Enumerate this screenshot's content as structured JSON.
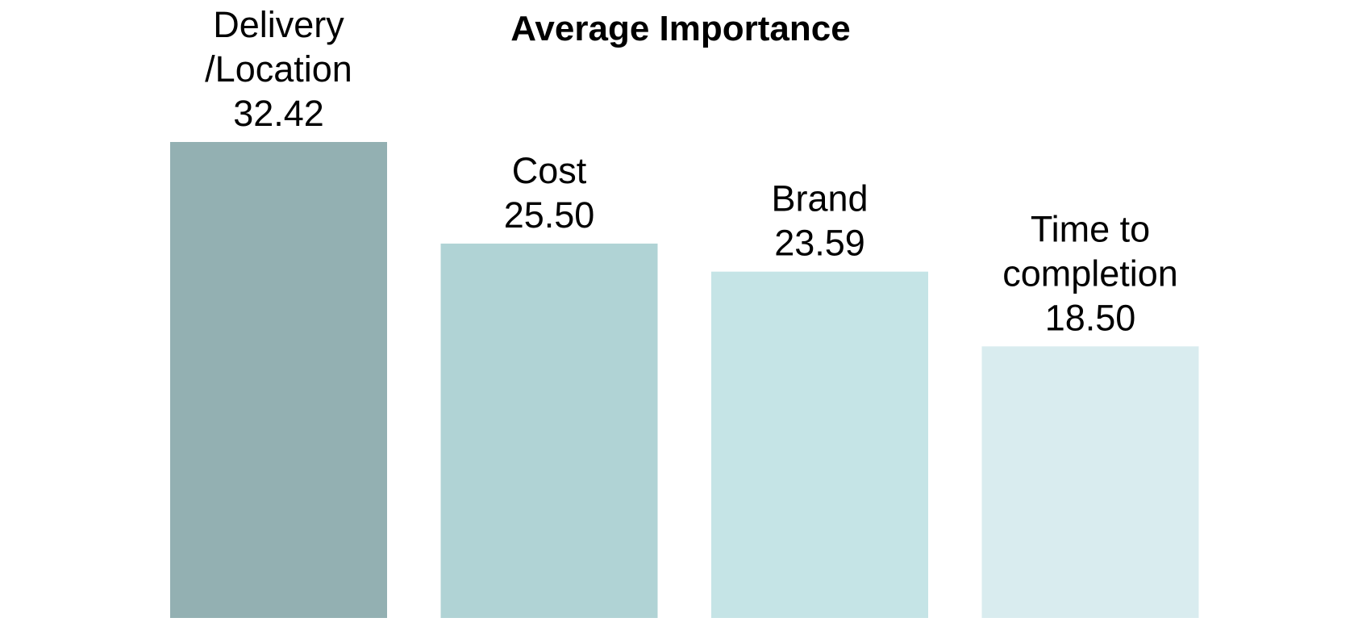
{
  "chart_data": {
    "type": "bar",
    "title": "Average Importance",
    "categories": [
      [
        "Delivery",
        "/Location"
      ],
      [
        "Cost"
      ],
      [
        "Brand"
      ],
      [
        "Time to",
        "completion"
      ]
    ],
    "values": [
      32.42,
      25.5,
      23.59,
      18.5
    ],
    "value_labels": [
      "32.42",
      "25.50",
      "23.59",
      "18.50"
    ],
    "colors": [
      "#93b0b2",
      "#b0d3d5",
      "#c5e4e6",
      "#d9ecef"
    ],
    "ylim": [
      0,
      32.42
    ],
    "grid": false,
    "legend": "none",
    "xlabel": "",
    "ylabel": ""
  }
}
